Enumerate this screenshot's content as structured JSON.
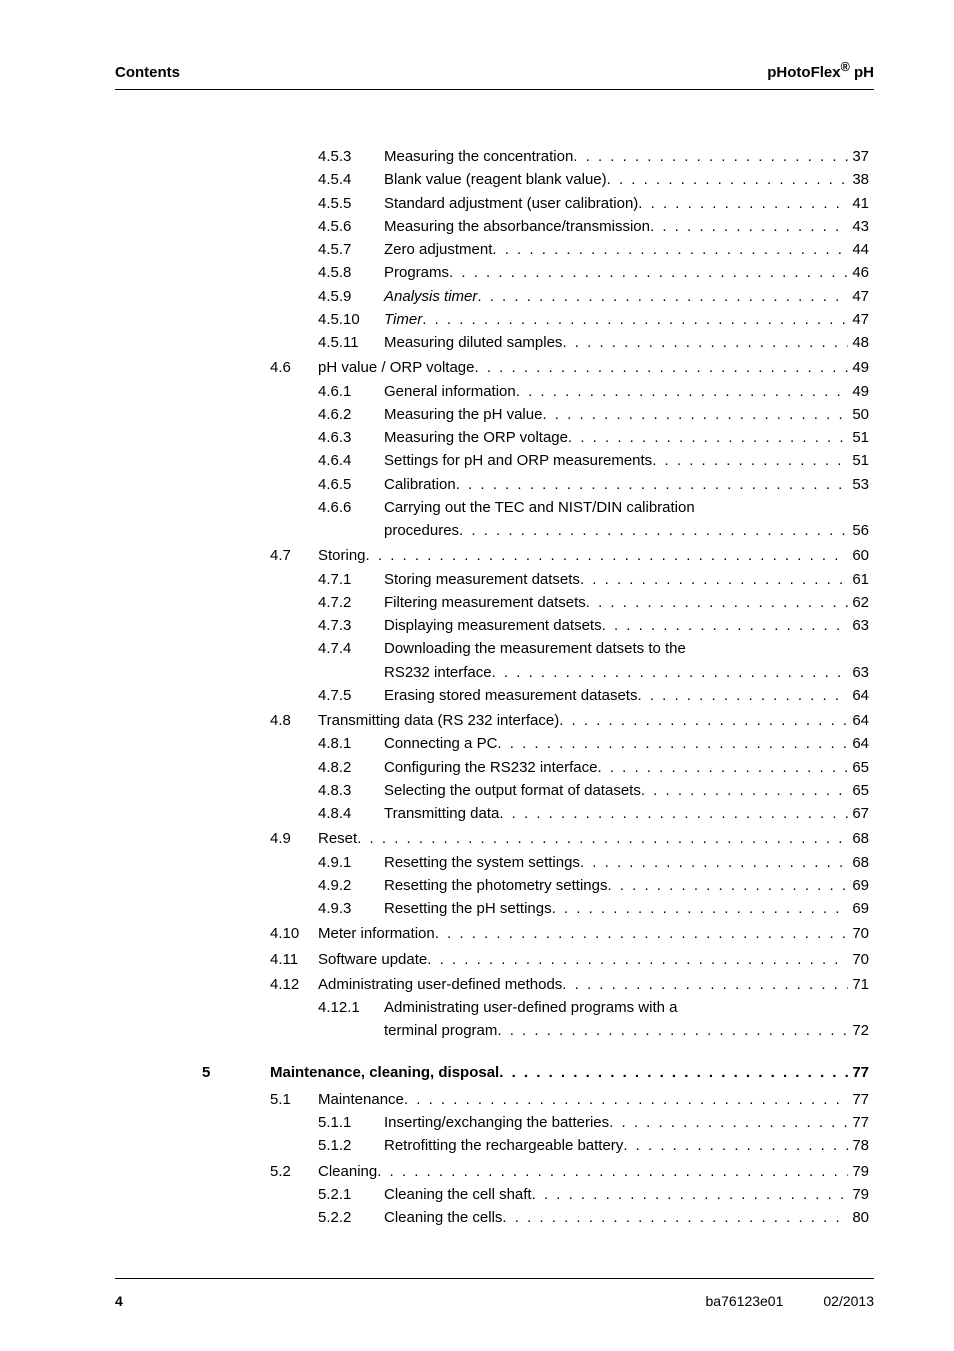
{
  "header": {
    "left": "Contents",
    "right_pre": "pHotoFlex",
    "right_sup": "®",
    "right_post": " pH"
  },
  "footer": {
    "page": "4",
    "code": "ba76123e01",
    "date": "02/2013"
  },
  "rows": [
    {
      "type": "sub",
      "num": "4.5.3",
      "title": "Measuring the concentration",
      "pg": "37"
    },
    {
      "type": "sub",
      "num": "4.5.4",
      "title": "Blank value (reagent blank value)",
      "pg": "38"
    },
    {
      "type": "sub",
      "num": "4.5.5",
      "title": "Standard adjustment (user calibration)",
      "pg": "41"
    },
    {
      "type": "sub",
      "num": "4.5.6",
      "title": "Measuring the absorbance/transmission",
      "pg": "43"
    },
    {
      "type": "sub",
      "num": "4.5.7",
      "title": "Zero adjustment",
      "pg": "44"
    },
    {
      "type": "sub",
      "num": "4.5.8",
      "title": "Programs",
      "pg": "46"
    },
    {
      "type": "sub",
      "num": "4.5.9",
      "title": "Analysis timer",
      "italic": true,
      "pg": "47"
    },
    {
      "type": "sub",
      "num": "4.5.10",
      "title": "Timer",
      "italic": true,
      "pg": "47"
    },
    {
      "type": "sub",
      "num": "4.5.11",
      "title": "Measuring diluted samples",
      "pg": "48"
    },
    {
      "type": "sec",
      "num": "4.6",
      "title": "pH value / ORP voltage",
      "pg": "49"
    },
    {
      "type": "sub",
      "num": "4.6.1",
      "title": "General information",
      "pg": "49"
    },
    {
      "type": "sub",
      "num": "4.6.2",
      "title": "Measuring the pH value",
      "pg": "50"
    },
    {
      "type": "sub",
      "num": "4.6.3",
      "title": "Measuring the ORP voltage",
      "pg": "51"
    },
    {
      "type": "sub",
      "num": "4.6.4",
      "title": "Settings for pH and ORP measurements",
      "pg": "51"
    },
    {
      "type": "sub",
      "num": "4.6.5",
      "title": "Calibration",
      "pg": "53"
    },
    {
      "type": "sub",
      "num": "4.6.6",
      "title": "Carrying out the TEC and NIST/DIN calibration",
      "cont": "procedures",
      "pg": "56"
    },
    {
      "type": "sec",
      "num": "4.7",
      "title": "Storing",
      "pg": "60"
    },
    {
      "type": "sub",
      "num": "4.7.1",
      "title": "Storing measurement datsets",
      "pg": "61"
    },
    {
      "type": "sub",
      "num": "4.7.2",
      "title": "Filtering measurement datsets",
      "pg": "62"
    },
    {
      "type": "sub",
      "num": "4.7.3",
      "title": "Displaying measurement datsets",
      "pg": "63"
    },
    {
      "type": "sub",
      "num": "4.7.4",
      "title": "Downloading the measurement datsets to the",
      "cont": "RS232 interface",
      "pg": "63"
    },
    {
      "type": "sub",
      "num": "4.7.5",
      "title": "Erasing stored measurement datasets",
      "pg": "64"
    },
    {
      "type": "sec",
      "num": "4.8",
      "title": "Transmitting data (RS 232 interface)",
      "pg": "64"
    },
    {
      "type": "sub",
      "num": "4.8.1",
      "title": "Connecting a PC",
      "pg": "64"
    },
    {
      "type": "sub",
      "num": "4.8.2",
      "title": "Configuring the RS232 interface",
      "pg": "65"
    },
    {
      "type": "sub",
      "num": "4.8.3",
      "title": "Selecting the output format of datasets",
      "pg": "65"
    },
    {
      "type": "sub",
      "num": "4.8.4",
      "title": "Transmitting data",
      "pg": "67"
    },
    {
      "type": "sec",
      "num": "4.9",
      "title": "Reset",
      "pg": "68"
    },
    {
      "type": "sub",
      "num": "4.9.1",
      "title": "Resetting the system settings",
      "pg": "68"
    },
    {
      "type": "sub",
      "num": "4.9.2",
      "title": "Resetting the photometry settings",
      "pg": "69"
    },
    {
      "type": "sub",
      "num": "4.9.3",
      "title": "Resetting the pH settings",
      "pg": "69"
    },
    {
      "type": "sec",
      "num": "4.10",
      "title": "Meter information",
      "pg": "70"
    },
    {
      "type": "sec",
      "num": "4.11",
      "title": "Software update",
      "pg": "70"
    },
    {
      "type": "sec",
      "num": "4.12",
      "title": "Administrating user-defined methods",
      "pg": "71"
    },
    {
      "type": "sub",
      "num": "4.12.1",
      "title": "Administrating user-defined programs with a",
      "cont": "terminal program",
      "pg": "72"
    },
    {
      "type": "chapter",
      "num": "5",
      "title": "Maintenance, cleaning, disposal",
      "pg": "77"
    },
    {
      "type": "sec",
      "num": "5.1",
      "title": "Maintenance",
      "pg": "77"
    },
    {
      "type": "sub",
      "num": "5.1.1",
      "title": "Inserting/exchanging the batteries",
      "pg": "77"
    },
    {
      "type": "sub",
      "num": "5.1.2",
      "title": "Retrofitting the rechargeable battery",
      "pg": "78"
    },
    {
      "type": "sec",
      "num": "5.2",
      "title": "Cleaning",
      "pg": "79"
    },
    {
      "type": "sub",
      "num": "5.2.1",
      "title": "Cleaning the cell shaft",
      "pg": "79"
    },
    {
      "type": "sub",
      "num": "5.2.2",
      "title": "Cleaning the cells",
      "pg": "80"
    }
  ]
}
